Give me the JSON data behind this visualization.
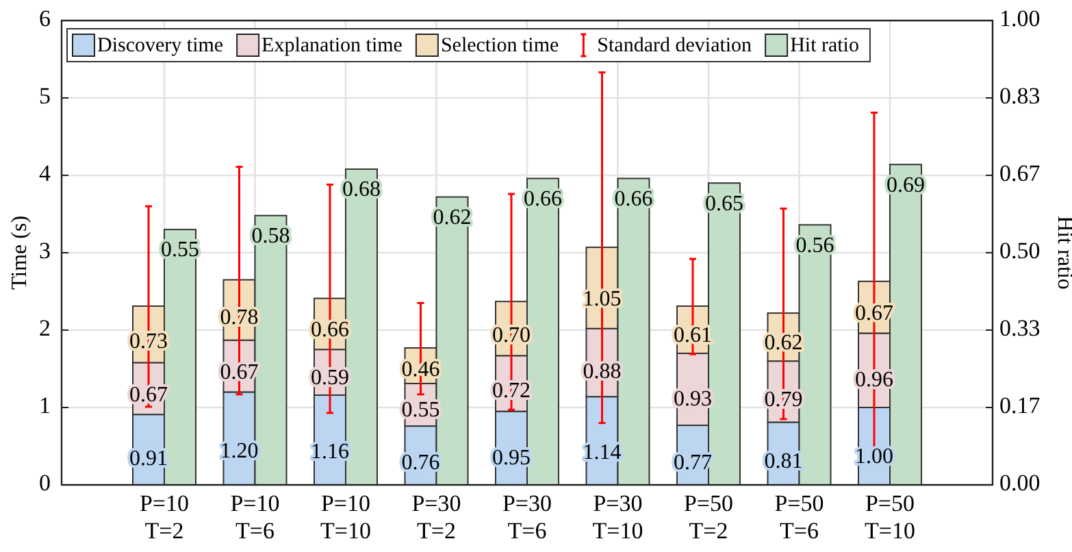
{
  "chart_data": {
    "type": "bar",
    "stacked": true,
    "ylabel": "Time (s)",
    "y2label": "Hit ratio",
    "categories": [
      "P=10\nT=2",
      "P=10\nT=6",
      "P=10\nT=10",
      "P=30\nT=2",
      "P=30\nT=6",
      "P=30\nT=10",
      "P=50\nT=2",
      "P=50\nT=6",
      "P=50\nT=10"
    ],
    "series": [
      {
        "name": "Discovery time",
        "color": "#bcd5f0",
        "values": [
          0.91,
          1.2,
          1.16,
          0.76,
          0.95,
          1.14,
          0.77,
          0.81,
          1.0
        ],
        "value_labels": [
          "0.91",
          "1.20",
          "1.16",
          "0.76",
          "0.95",
          "1.14",
          "0.77",
          "0.81",
          "1.00"
        ]
      },
      {
        "name": "Explanation time",
        "color": "#ecd6d8",
        "values": [
          0.67,
          0.67,
          0.59,
          0.55,
          0.72,
          0.88,
          0.93,
          0.79,
          0.96
        ],
        "value_labels": [
          "0.67",
          "0.67",
          "0.59",
          "0.55",
          "0.72",
          "0.88",
          "0.93",
          "0.79",
          "0.96"
        ]
      },
      {
        "name": "Selection time",
        "color": "#f3dfbc",
        "values": [
          0.73,
          0.78,
          0.66,
          0.46,
          0.7,
          1.05,
          0.61,
          0.62,
          0.67
        ],
        "value_labels": [
          "0.73",
          "0.78",
          "0.66",
          "0.46",
          "0.70",
          "1.05",
          "0.61",
          "0.62",
          "0.67"
        ],
        "errors": [
          [
            1.01,
            3.6
          ],
          [
            1.17,
            4.11
          ],
          [
            0.93,
            3.88
          ],
          [
            1.17,
            2.35
          ],
          [
            0.97,
            3.76
          ],
          [
            0.8,
            5.33
          ],
          [
            1.69,
            2.92
          ],
          [
            0.85,
            3.57
          ],
          [
            0.45,
            4.81
          ]
        ]
      },
      {
        "name": "Hit ratio",
        "color": "#c4dfc8",
        "axis": "y2",
        "values": [
          0.55,
          0.58,
          0.68,
          0.62,
          0.66,
          0.66,
          0.65,
          0.56,
          0.69
        ],
        "value_labels": [
          "0.55",
          "0.58",
          "0.68",
          "0.62",
          "0.66",
          "0.66",
          "0.65",
          "0.56",
          "0.69"
        ]
      }
    ],
    "ylim": [
      0,
      6
    ],
    "yticks": [
      0,
      1,
      2,
      3,
      4,
      5,
      6
    ],
    "y2lim": [
      0,
      1
    ],
    "y2ticks": [
      {
        "value": 0,
        "label": "0.00"
      },
      {
        "value": 0.1667,
        "label": "0.17"
      },
      {
        "value": 0.3333,
        "label": "0.33"
      },
      {
        "value": 0.5,
        "label": "0.50"
      },
      {
        "value": 0.6667,
        "label": "0.67"
      },
      {
        "value": 0.8333,
        "label": "0.83"
      },
      {
        "value": 1,
        "label": "1.00"
      }
    ],
    "grid": true,
    "legend": "top",
    "annotations": [
      "Standard deviation"
    ]
  }
}
